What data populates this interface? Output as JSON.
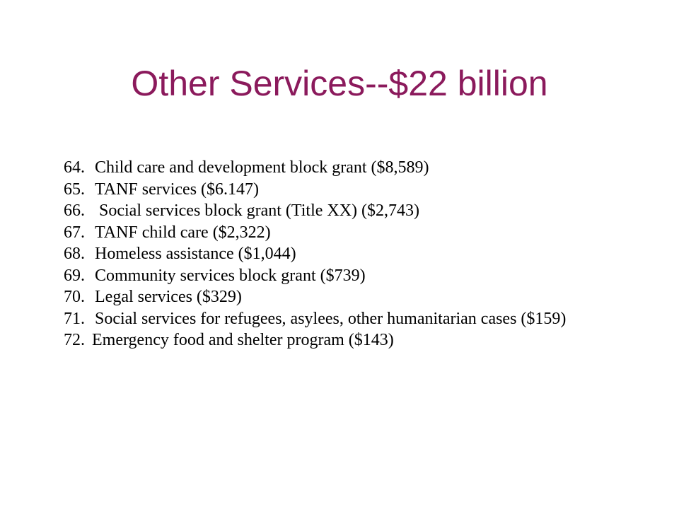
{
  "slide": {
    "title": "Other Services--$22 billion",
    "items": [
      {
        "number": "64.",
        "text": "Child care and development block grant ($8,589)"
      },
      {
        "number": "65.",
        "text": "TANF services ($6.147)"
      },
      {
        "number": "66.",
        "text": " Social services block grant (Title XX) ($2,743)"
      },
      {
        "number": "67.",
        "text": "TANF child care ($2,322)"
      },
      {
        "number": "68.",
        "text": "Homeless assistance ($1,044)"
      },
      {
        "number": "69.",
        "text": "Community services block grant ($739)"
      },
      {
        "number": "70.",
        "text": "Legal services ($329)"
      },
      {
        "number": "71.",
        "text": "Social services for refugees, asylees, other humanitarian cases ($159)"
      },
      {
        "number": "72.",
        "text": "Emergency food and shelter program ($143)"
      }
    ]
  }
}
